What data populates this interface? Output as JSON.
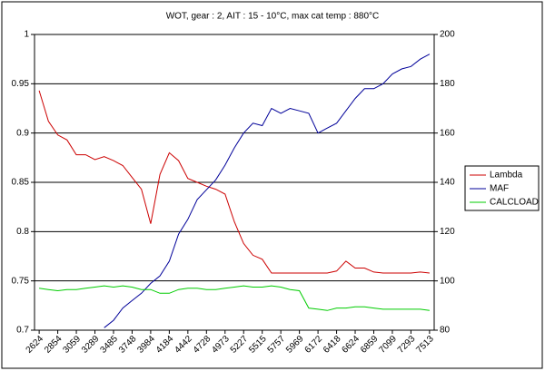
{
  "chart_data": {
    "type": "line",
    "title": "WOT, gear : 2, AIT : 15 - 10°C, max cat temp : 880°C",
    "categories": [
      "2624",
      null,
      "2854",
      null,
      "3059",
      null,
      "3289",
      null,
      "3485",
      null,
      "3748",
      null,
      "3984",
      null,
      "4184",
      null,
      "4442",
      null,
      "4728",
      null,
      "4973",
      null,
      "5227",
      null,
      "5515",
      null,
      "5757",
      null,
      "5969",
      null,
      "6172",
      null,
      "6418",
      null,
      "6624",
      null,
      "6859",
      null,
      "7099",
      null,
      "7293",
      null,
      "7513"
    ],
    "series": [
      {
        "name": "Lambda",
        "color": "#cc0000",
        "axis": "y",
        "values": [
          0.943,
          0.912,
          0.898,
          0.893,
          0.878,
          0.878,
          0.873,
          0.876,
          0.872,
          0.867,
          0.855,
          0.843,
          0.808,
          0.858,
          0.88,
          0.872,
          0.854,
          0.85,
          0.846,
          0.843,
          0.838,
          0.81,
          0.788,
          0.776,
          0.772,
          0.758,
          0.758,
          0.758,
          0.758,
          0.758,
          0.758,
          0.758,
          0.76,
          0.77,
          0.763,
          0.763,
          0.759,
          0.758,
          0.758,
          0.758,
          0.758,
          0.759,
          0.758
        ]
      },
      {
        "name": "MAF",
        "color": "#000099",
        "axis": "y2",
        "values": [
          null,
          null,
          null,
          null,
          null,
          null,
          null,
          81,
          84,
          89,
          92,
          95,
          99,
          102,
          108,
          119,
          125,
          133,
          137,
          141,
          147,
          154,
          160,
          164,
          163,
          170,
          168,
          170,
          169,
          168,
          160,
          162,
          164,
          169,
          174,
          178,
          178,
          180,
          184,
          186,
          187,
          190,
          192
        ]
      },
      {
        "name": "CALCLOAD",
        "color": "#00cc00",
        "axis": "y2",
        "values": [
          97,
          96.5,
          96,
          96.5,
          96.5,
          97,
          97.5,
          98,
          97.5,
          98,
          97.5,
          96.5,
          96.5,
          95,
          95,
          96.5,
          97,
          97,
          96.5,
          96.5,
          97,
          97.5,
          98,
          97.5,
          97.5,
          98,
          97.5,
          96.5,
          96,
          89,
          88.5,
          88,
          89,
          89,
          89.5,
          89.5,
          89,
          88.5,
          88.5,
          88.5,
          88.5,
          88.5,
          88
        ]
      }
    ],
    "ylim": [
      0.7,
      1
    ],
    "yticks": [
      0.7,
      0.75,
      0.8,
      0.85,
      0.9,
      0.95,
      1
    ],
    "y2lim": [
      80,
      200
    ],
    "y2ticks": [
      80,
      100,
      120,
      140,
      160,
      180,
      200
    ],
    "grid": true,
    "legend": "right"
  }
}
